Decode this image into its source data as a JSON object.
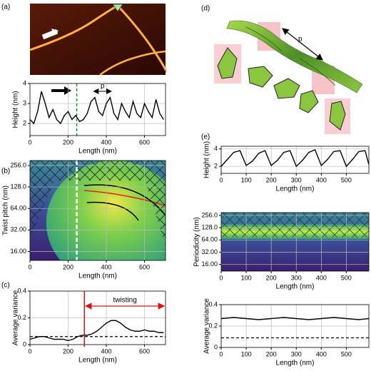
{
  "chart_data": [
    {
      "type": "line",
      "panel": "(a)",
      "xlabel": "Length (nm)",
      "ylabel": "Height (nm)",
      "annotation": "p",
      "xlim": [
        0,
        710
      ],
      "ylim": [
        1.4,
        4
      ],
      "xticks": [
        0,
        200,
        400,
        600
      ],
      "yticks": [
        2,
        3,
        4
      ],
      "grid": true,
      "color": "#000000",
      "reference_x": 245,
      "reference_color": "#1a9a1a",
      "x": [
        0,
        20,
        40,
        60,
        80,
        100,
        120,
        140,
        160,
        180,
        200,
        220,
        240,
        260,
        280,
        300,
        320,
        340,
        360,
        380,
        400,
        420,
        440,
        460,
        480,
        500,
        520,
        540,
        560,
        580,
        600,
        620,
        640,
        660,
        680,
        700
      ],
      "values": [
        2.2,
        2.0,
        2.6,
        3.6,
        3.0,
        2.3,
        2.7,
        2.2,
        2.0,
        2.4,
        2.6,
        2.2,
        2.4,
        2.1,
        2.2,
        2.5,
        3.1,
        3.3,
        2.6,
        2.4,
        3.0,
        3.3,
        2.5,
        2.2,
        3.0,
        2.6,
        2.3,
        3.1,
        2.5,
        2.3,
        3.0,
        2.6,
        2.3,
        3.2,
        2.5,
        2.2
      ]
    },
    {
      "type": "heatmap",
      "panel": "(b)",
      "xlabel": "Length (nm)",
      "ylabel": "Twist pitch (nm)",
      "log": true,
      "xlim": [
        0,
        710
      ],
      "ylim": [
        12,
        300
      ],
      "xticks": [
        0,
        200,
        400,
        600
      ],
      "yticks": [
        {
          "value": 16,
          "label": "16.00"
        },
        {
          "value": 32,
          "label": "32.00"
        },
        {
          "value": 64,
          "label": "64.00"
        },
        {
          "value": 128,
          "label": "128.0"
        },
        {
          "value": 256,
          "label": "256.0"
        }
      ],
      "grid": true,
      "reference_x": 245,
      "reference_color": "#ffffff"
    },
    {
      "type": "line",
      "panel": "(c)",
      "xlabel": "Length (nm)",
      "ylabel": "Average variance",
      "annotation": "twisting",
      "xlim": [
        0,
        710
      ],
      "ylim": [
        0,
        0.4
      ],
      "xticks": [
        0,
        200,
        400,
        600
      ],
      "yticks": [
        0,
        0.2,
        0.4
      ],
      "grid": true,
      "color": "#000000",
      "reference_y": 0.06,
      "onset_x": 285,
      "onset_color": "#e01010",
      "x": [
        0,
        25,
        50,
        75,
        100,
        125,
        150,
        175,
        200,
        225,
        250,
        275,
        300,
        325,
        350,
        375,
        400,
        425,
        450,
        475,
        500,
        525,
        550,
        575,
        600,
        625,
        650,
        675,
        700
      ],
      "values": [
        0.04,
        0.05,
        0.06,
        0.06,
        0.05,
        0.04,
        0.04,
        0.04,
        0.03,
        0.04,
        0.06,
        0.07,
        0.07,
        0.08,
        0.1,
        0.13,
        0.16,
        0.18,
        0.18,
        0.16,
        0.13,
        0.11,
        0.1,
        0.1,
        0.11,
        0.1,
        0.1,
        0.09,
        0.09
      ]
    },
    {
      "type": "line",
      "panel": "(e)",
      "xlabel": "Length (nm)",
      "ylabel": "Height (nm)",
      "xlim": [
        0,
        590
      ],
      "ylim": [
        1.2,
        4.3
      ],
      "xticks": [
        0,
        100,
        200,
        300,
        400,
        500
      ],
      "yticks": [
        2,
        4
      ],
      "grid": true,
      "color": "#000000",
      "x": [
        0,
        25,
        50,
        75,
        100,
        125,
        150,
        175,
        200,
        225,
        250,
        275,
        300,
        325,
        350,
        375,
        400,
        425,
        450,
        475,
        500,
        525,
        550,
        575,
        590
      ],
      "values": [
        2.0,
        2.8,
        3.6,
        3.8,
        2.1,
        2.6,
        3.5,
        3.8,
        2.1,
        2.7,
        3.6,
        3.8,
        2.0,
        2.7,
        3.6,
        3.9,
        2.1,
        2.8,
        3.7,
        3.8,
        2.0,
        2.8,
        3.7,
        3.8,
        2.2
      ]
    },
    {
      "type": "heatmap",
      "xlabel": "Length (nm)",
      "ylabel": "Periodicity (nm)",
      "log": true,
      "xlim": [
        0,
        590
      ],
      "ylim": [
        11,
        300
      ],
      "xticks": [
        0,
        100,
        200,
        300,
        400,
        500
      ],
      "yticks": [
        {
          "value": 16,
          "label": "16.00"
        },
        {
          "value": 32,
          "label": "32.00"
        },
        {
          "value": 64,
          "label": "64.00"
        },
        {
          "value": 128,
          "label": "128.0"
        },
        {
          "value": 256,
          "label": "256.0"
        }
      ],
      "grid": true
    },
    {
      "type": "line",
      "xlabel": "Length (nm)",
      "ylabel": "Average variance",
      "xlim": [
        0,
        590
      ],
      "ylim": [
        0,
        0.4
      ],
      "xticks": [
        0,
        100,
        200,
        300,
        400,
        500
      ],
      "yticks": [
        0,
        0.2,
        0.4
      ],
      "grid": true,
      "color": "#000000",
      "reference_y": 0.09,
      "x": [
        0,
        50,
        100,
        150,
        200,
        250,
        300,
        350,
        400,
        450,
        500,
        550,
        590
      ],
      "values": [
        0.27,
        0.28,
        0.27,
        0.26,
        0.27,
        0.28,
        0.27,
        0.26,
        0.27,
        0.28,
        0.27,
        0.26,
        0.27
      ]
    }
  ],
  "diagram": {
    "panel": "(d)",
    "label": "p"
  }
}
